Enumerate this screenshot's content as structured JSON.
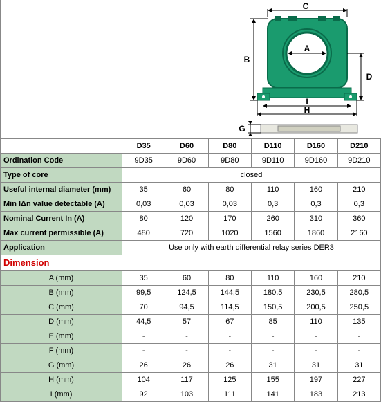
{
  "diagram": {
    "labels": {
      "A": "A",
      "B": "B",
      "C": "C",
      "D": "D",
      "G": "G",
      "H": "H",
      "I": "I"
    },
    "body_color": "#1a9b6e",
    "hole_color": "#ffffff",
    "base_color": "#1a9b6e",
    "outline_color": "#000000",
    "dim_color": "#000000"
  },
  "spec_table": {
    "columns": [
      "D35",
      "D60",
      "D80",
      "D110",
      "D160",
      "D210"
    ],
    "rows": [
      {
        "label": "Ordination Code",
        "values": [
          "9D35",
          "9D60",
          "9D80",
          "9D110",
          "9D160",
          "9D210"
        ]
      },
      {
        "label": "Type of core",
        "merged": "closed"
      },
      {
        "label": "Useful internal diameter (mm)",
        "values": [
          "35",
          "60",
          "80",
          "110",
          "160",
          "210"
        ]
      },
      {
        "label": "Min IΔn value detectable  (A)",
        "values": [
          "0,03",
          "0,03",
          "0,03",
          "0,3",
          "0,3",
          "0,3"
        ]
      },
      {
        "label": "Nominal Current In (A)",
        "values": [
          "80",
          "120",
          "170",
          "260",
          "310",
          "360"
        ]
      },
      {
        "label": "Max current permissible (A)",
        "values": [
          "480",
          "720",
          "1020",
          "1560",
          "1860",
          "2160"
        ]
      },
      {
        "label": "Application",
        "merged": "Use only with earth differential relay series DER3"
      }
    ]
  },
  "dimension_title": "Dimension",
  "dim_table": {
    "rows": [
      {
        "label": "A (mm)",
        "values": [
          "35",
          "60",
          "80",
          "110",
          "160",
          "210"
        ]
      },
      {
        "label": "B (mm)",
        "values": [
          "99,5",
          "124,5",
          "144,5",
          "180,5",
          "230,5",
          "280,5"
        ]
      },
      {
        "label": "C (mm)",
        "values": [
          "70",
          "94,5",
          "114,5",
          "150,5",
          "200,5",
          "250,5"
        ]
      },
      {
        "label": "D (mm)",
        "values": [
          "44,5",
          "57",
          "67",
          "85",
          "110",
          "135"
        ]
      },
      {
        "label": "E (mm)",
        "values": [
          "-",
          "-",
          "-",
          "-",
          "-",
          "-"
        ]
      },
      {
        "label": "F (mm)",
        "values": [
          "-",
          "-",
          "-",
          "-",
          "-",
          "-"
        ]
      },
      {
        "label": "G (mm)",
        "values": [
          "26",
          "26",
          "26",
          "31",
          "31",
          "31"
        ]
      },
      {
        "label": "H (mm)",
        "values": [
          "104",
          "117",
          "125",
          "155",
          "197",
          "227"
        ]
      },
      {
        "label": "I (mm)",
        "values": [
          "92",
          "103",
          "111",
          "141",
          "183",
          "213"
        ]
      }
    ]
  }
}
